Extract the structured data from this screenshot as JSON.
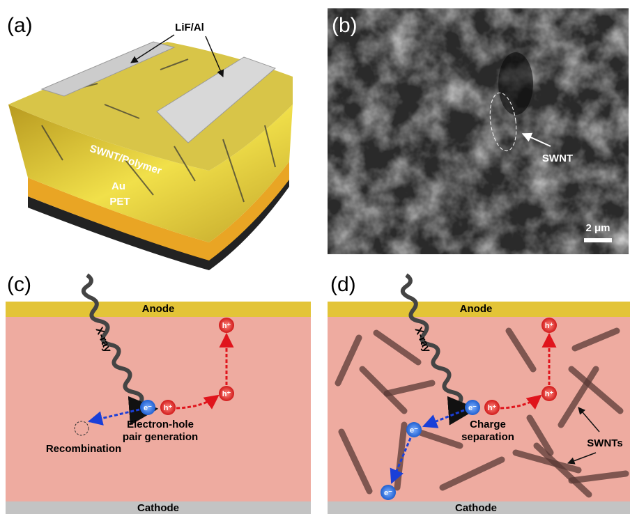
{
  "panels": [
    {
      "label": "(a)",
      "annotations": {
        "electrode": "LiF/Al",
        "active_layer": "SWNT/Polymer",
        "bottom_electrode": "Au",
        "substrate": "PET"
      }
    },
    {
      "label": "(b)",
      "annotations": {
        "tube": "SWNT",
        "scale_bar": "2 μm"
      }
    },
    {
      "label": "(c)",
      "anode": "Anode",
      "cathode": "Cathode",
      "xray": "X-ray",
      "electron": "e⁻",
      "holes": [
        "h⁺",
        "h⁺",
        "h⁺"
      ],
      "generation": [
        "Electron-hole",
        "pair generation"
      ],
      "recombination": "Recombination"
    },
    {
      "label": "(d)",
      "anode": "Anode",
      "cathode": "Cathode",
      "xray": "X-ray",
      "electrons": [
        "e⁻",
        "e⁻",
        "e⁻"
      ],
      "holes": [
        "h⁺",
        "h⁺",
        "h⁺"
      ],
      "separation": [
        "Charge",
        "separation"
      ],
      "tubes": "SWNTs"
    }
  ]
}
